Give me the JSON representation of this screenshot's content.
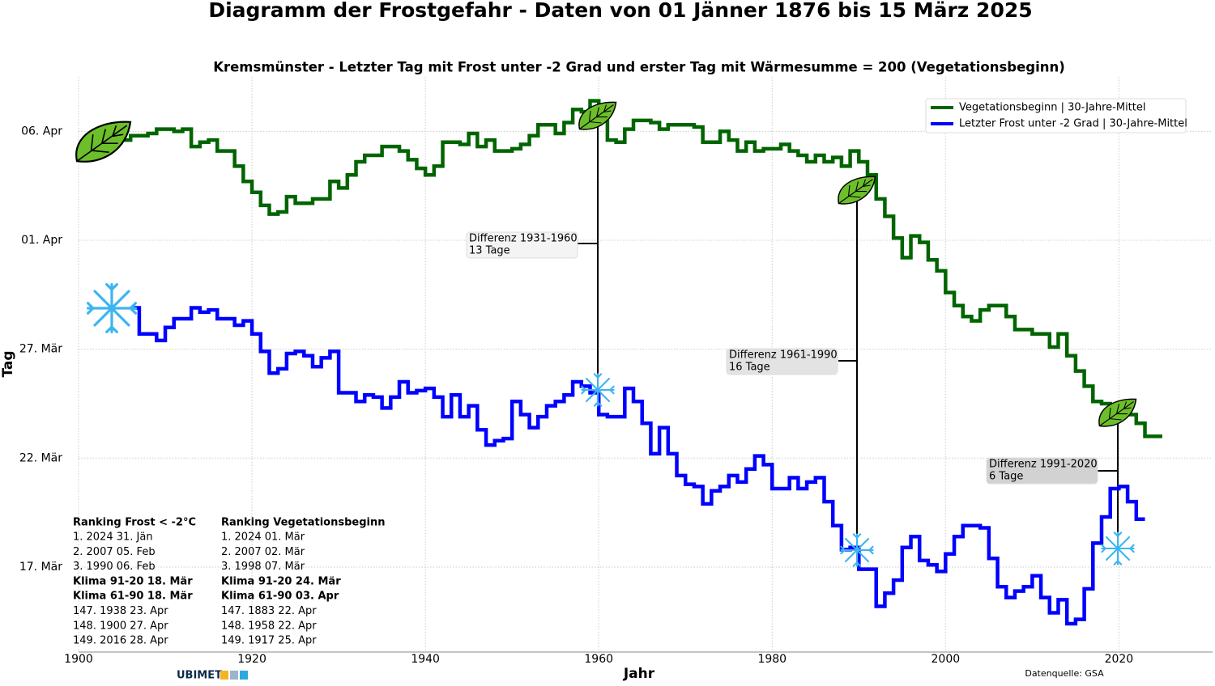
{
  "chart_data": {
    "type": "step",
    "title": "Diagramm der Frostgefahr - Daten von 01 Jänner 1876 bis 15 März 2025",
    "subtitle": "Kremsmünster - Letzter Tag mit Frost unter -2 Grad und erster Tag mit Wärmesumme = 200 (Vegetationsbeginn)",
    "x_label": "Jahr",
    "y_label": "Tag",
    "xlim": [
      1900,
      2030.8
    ],
    "xticks": [
      1900,
      1920,
      1940,
      1960,
      1980,
      2000,
      2020
    ],
    "ylim": [
      72.1,
      98.5
    ],
    "yticks": [
      {
        "value": 76,
        "label": "17. Mär"
      },
      {
        "value": 81,
        "label": "22. Mär"
      },
      {
        "value": 86,
        "label": "27. Mär"
      },
      {
        "value": 91,
        "label": "01. Apr"
      },
      {
        "value": 96,
        "label": "06. Apr"
      }
    ],
    "grid": true,
    "legend": "upper right",
    "series": [
      {
        "name": "Vegetationsbeginn | 30-Jahre-Mittel",
        "color": "#006400",
        "x": [
          1905,
          1906,
          1908,
          1909,
          1911,
          1912,
          1913,
          1914,
          1915,
          1916,
          1918,
          1919,
          1920,
          1921,
          1922,
          1923,
          1924,
          1925,
          1926,
          1927,
          1928,
          1929,
          1930,
          1931,
          1932,
          1933,
          1935,
          1937,
          1938,
          1939,
          1940,
          1941,
          1942,
          1944,
          1945,
          1946,
          1947,
          1948,
          1950,
          1951,
          1952,
          1953,
          1955,
          1956,
          1957,
          1958,
          1959,
          1960,
          1961,
          1962,
          1963,
          1964,
          1966,
          1967,
          1968,
          1969,
          1971,
          1972,
          1974,
          1975,
          1976,
          1977,
          1978,
          1979,
          1981,
          1982,
          1983,
          1984,
          1985,
          1986,
          1987,
          1988,
          1989,
          1990,
          1991,
          1992,
          1993,
          1994,
          1995,
          1996,
          1997,
          1998,
          1999,
          2000,
          2001,
          2002,
          2003,
          2004,
          2005,
          2006,
          2007,
          2008,
          2009,
          2010,
          2011,
          2012,
          2013,
          2014,
          2015,
          2016,
          2017,
          2018,
          2019,
          2020,
          2021,
          2022,
          2023,
          2024
        ],
        "values": [
          95.6,
          95.8,
          95.9,
          96.1,
          96.0,
          96.1,
          95.3,
          95.5,
          95.6,
          95.1,
          94.4,
          93.7,
          93.2,
          92.6,
          92.2,
          92.3,
          93.0,
          92.7,
          92.7,
          92.9,
          92.9,
          93.7,
          93.4,
          94.0,
          94.6,
          94.9,
          95.3,
          95.1,
          94.7,
          94.3,
          94.0,
          94.4,
          95.5,
          95.4,
          95.9,
          95.3,
          95.6,
          95.1,
          95.2,
          95.4,
          95.8,
          96.3,
          95.9,
          96.4,
          97.0,
          96.9,
          97.4,
          96.6,
          95.6,
          95.5,
          96.1,
          96.5,
          96.4,
          96.1,
          96.3,
          96.3,
          96.2,
          95.5,
          96.0,
          95.6,
          95.1,
          95.5,
          95.1,
          95.2,
          95.4,
          95.1,
          94.9,
          94.6,
          94.9,
          94.6,
          94.8,
          94.4,
          95.1,
          94.6,
          94.0,
          92.9,
          92.1,
          91.1,
          90.2,
          91.2,
          90.9,
          90.1,
          89.6,
          88.6,
          88.0,
          87.5,
          87.3,
          87.8,
          88.0,
          88.0,
          87.5,
          86.9,
          86.9,
          86.7,
          86.7,
          86.1,
          86.7,
          85.7,
          85.0,
          84.3,
          83.6,
          83.5,
          83.3,
          83.1,
          83.0,
          82.6,
          82.0,
          82.0
        ]
      },
      {
        "name": "Letzter Frost unter -2 Grad | 30-Jahre-Mittel",
        "color": "#0000ff",
        "x": [
          1906,
          1907,
          1908,
          1909,
          1910,
          1911,
          1912,
          1913,
          1914,
          1915,
          1916,
          1917,
          1918,
          1919,
          1920,
          1921,
          1922,
          1923,
          1924,
          1925,
          1926,
          1927,
          1928,
          1929,
          1930,
          1931,
          1932,
          1933,
          1934,
          1935,
          1936,
          1937,
          1938,
          1939,
          1940,
          1941,
          1942,
          1943,
          1944,
          1945,
          1946,
          1947,
          1948,
          1949,
          1950,
          1951,
          1952,
          1953,
          1954,
          1955,
          1956,
          1957,
          1958,
          1959,
          1960,
          1961,
          1962,
          1963,
          1964,
          1965,
          1966,
          1967,
          1968,
          1969,
          1970,
          1971,
          1972,
          1973,
          1974,
          1975,
          1976,
          1977,
          1978,
          1979,
          1980,
          1981,
          1982,
          1983,
          1984,
          1985,
          1986,
          1987,
          1988,
          1989,
          1990,
          1991,
          1992,
          1993,
          1994,
          1995,
          1996,
          1997,
          1998,
          1999,
          2000,
          2001,
          2002,
          2003,
          2004,
          2005,
          2006,
          2007,
          2008,
          2009,
          2010,
          2011,
          2012,
          2013,
          2014,
          2015,
          2016,
          2017,
          2018,
          2019,
          2020,
          2021,
          2022
        ],
        "values": [
          87.9,
          86.7,
          86.7,
          86.4,
          87.0,
          87.4,
          87.4,
          87.9,
          87.7,
          87.8,
          87.4,
          87.4,
          87.1,
          87.3,
          86.7,
          85.9,
          84.9,
          85.1,
          85.8,
          85.9,
          85.7,
          85.2,
          85.6,
          85.9,
          84.0,
          84.0,
          83.6,
          83.9,
          83.8,
          83.3,
          83.8,
          84.5,
          84.0,
          84.1,
          84.2,
          83.8,
          82.9,
          83.9,
          82.9,
          83.4,
          82.3,
          81.6,
          81.8,
          81.9,
          83.6,
          83.0,
          82.4,
          82.9,
          83.4,
          83.6,
          83.9,
          84.5,
          84.3,
          84.0,
          83.0,
          82.9,
          82.9,
          84.2,
          83.6,
          82.6,
          81.2,
          82.4,
          81.2,
          80.2,
          79.8,
          79.7,
          78.9,
          79.5,
          79.7,
          80.2,
          79.9,
          80.5,
          81.1,
          80.7,
          79.6,
          79.6,
          80.1,
          79.6,
          79.9,
          80.1,
          79.0,
          77.9,
          76.8,
          76.9,
          75.9,
          75.9,
          74.2,
          74.8,
          75.4,
          76.9,
          77.4,
          76.3,
          76.1,
          75.8,
          76.6,
          77.4,
          77.9,
          77.9,
          77.8,
          76.4,
          75.1,
          74.6,
          74.9,
          75.1,
          75.6,
          74.6,
          73.9,
          74.5,
          73.4,
          73.6,
          75.0,
          77.1,
          78.3,
          79.6,
          79.7,
          79.0,
          78.2
        ]
      }
    ],
    "annotations": [
      [
        "Differenz 1931-1960",
        "13 Tage"
      ],
      [
        "Differenz 1961-1990",
        "16 Tage"
      ],
      [
        "Differenz 1991-2020",
        "6 Tage"
      ]
    ],
    "rankings": [
      {
        "title": "Ranking Frost < -2°C",
        "rows": [
          {
            "text": "1.  2024 31. Jän"
          },
          {
            "text": "2.  2007 05. Feb"
          },
          {
            "text": "3.  1990 06. Feb"
          },
          {
            "text": "Klima 91-20 18. Mär",
            "bold": true
          },
          {
            "text": "Klima 61-90 18. Mär",
            "bold": true
          },
          {
            "text": "147.  1938 23. Apr"
          },
          {
            "text": "148.  1900 27. Apr"
          },
          {
            "text": "149.  2016 28. Apr"
          }
        ]
      },
      {
        "title": "Ranking Vegetationsbeginn",
        "rows": [
          {
            "text": "1.  2024 01. Mär"
          },
          {
            "text": "2.  2007 02. Mär"
          },
          {
            "text": "3.  1998 07. Mär"
          },
          {
            "text": "Klima 91-20 24. Mär",
            "bold": true
          },
          {
            "text": "Klima 61-90 03. Apr",
            "bold": true
          },
          {
            "text": "147.  1883 22. Apr"
          },
          {
            "text": "148.  1958 22. Apr"
          },
          {
            "text": "149.  1917 25. Apr"
          }
        ]
      }
    ],
    "source": "Datenquelle: GSA",
    "logo": "UBIMET"
  }
}
